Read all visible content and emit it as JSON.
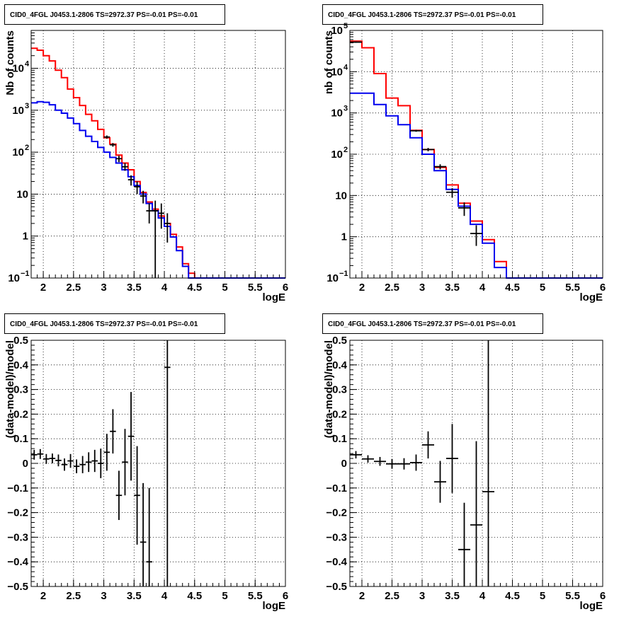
{
  "chart_data": [
    {
      "type": "line",
      "title": "CID0_4FGL J0453.1-2806 TS=2972.37 PS=-0.01 PS=-0.01",
      "xlabel": "logE",
      "ylabel": "Nb of counts",
      "xlim": [
        1.8,
        6
      ],
      "ylim": [
        0.1,
        80000
      ],
      "yscale": "log",
      "grid": true,
      "xticks": [
        "2",
        "2.5",
        "3",
        "3.5",
        "4",
        "4.5",
        "5",
        "5.5",
        "6"
      ],
      "yticks": [
        {
          "v": 0.1,
          "m": "10",
          "e": "−1"
        },
        {
          "v": 1,
          "m": "1"
        },
        {
          "v": 10,
          "m": "10"
        },
        {
          "v": 100,
          "m": "10",
          "e": "2"
        },
        {
          "v": 1000,
          "m": "10",
          "e": "3"
        },
        {
          "v": 10000,
          "m": "10",
          "e": "4"
        }
      ],
      "series": [
        {
          "color": "#ff0000",
          "kind": "step",
          "edges": [
            1.8,
            1.9,
            2.0,
            2.1,
            2.2,
            2.3,
            2.4,
            2.5,
            2.6,
            2.7,
            2.8,
            2.9,
            3.0,
            3.1,
            3.2,
            3.3,
            3.4,
            3.5,
            3.6,
            3.7,
            3.8,
            3.9,
            4.0,
            4.1,
            4.2,
            4.3,
            4.4,
            4.5,
            4.6,
            4.7,
            4.8,
            4.9,
            5.0,
            5.1,
            5.2,
            5.3,
            5.4,
            5.5,
            5.6,
            5.7,
            5.8,
            5.9,
            6.0
          ],
          "values": [
            30000,
            27000,
            20000,
            15000,
            9000,
            6000,
            3200,
            2000,
            1300,
            800,
            560,
            350,
            220,
            155,
            85,
            55,
            38,
            20,
            11,
            6.5,
            4.4,
            3.0,
            2.0,
            1.1,
            0.55,
            0.22,
            0.13,
            0.1,
            0.1,
            0.1,
            0.1,
            0.1,
            0.1,
            0.1,
            0.1,
            0.1,
            0.1,
            0.1,
            0.1,
            0.1,
            0.1,
            0.1
          ]
        },
        {
          "color": "#0000ee",
          "kind": "step",
          "edges": [
            1.8,
            1.9,
            2.0,
            2.1,
            2.2,
            2.3,
            2.4,
            2.5,
            2.6,
            2.7,
            2.8,
            2.9,
            3.0,
            3.1,
            3.2,
            3.3,
            3.4,
            3.5,
            3.6,
            3.7,
            3.8,
            3.9,
            4.0,
            4.1,
            4.2,
            4.3,
            4.4,
            4.5,
            4.6,
            4.7,
            4.8,
            4.9,
            5.0,
            5.1,
            5.2,
            5.3,
            5.4,
            5.5,
            5.6,
            5.7,
            5.8,
            5.9,
            6.0
          ],
          "values": [
            1500,
            1600,
            1550,
            1350,
            1000,
            850,
            650,
            480,
            330,
            240,
            180,
            130,
            100,
            75,
            55,
            38,
            26,
            16,
            10,
            6.0,
            4.0,
            2.7,
            1.7,
            0.95,
            0.45,
            0.19,
            0.1,
            0.1,
            0.1,
            0.1,
            0.1,
            0.1,
            0.1,
            0.1,
            0.1,
            0.1,
            0.1,
            0.1,
            0.1,
            0.1,
            0.1,
            0.1
          ]
        },
        {
          "color": "#000000",
          "kind": "errors",
          "points": [
            {
              "x": 3.05,
              "xerr": 0.05,
              "y": 230,
              "ylo": 210,
              "yhi": 250
            },
            {
              "x": 3.15,
              "xerr": 0.05,
              "y": 150,
              "ylo": 135,
              "yhi": 165
            },
            {
              "x": 3.25,
              "xerr": 0.05,
              "y": 70,
              "ylo": 58,
              "yhi": 82
            },
            {
              "x": 3.35,
              "xerr": 0.05,
              "y": 45,
              "ylo": 36,
              "yhi": 55
            },
            {
              "x": 3.45,
              "xerr": 0.05,
              "y": 22,
              "ylo": 16,
              "yhi": 28
            },
            {
              "x": 3.55,
              "xerr": 0.05,
              "y": 15,
              "ylo": 10,
              "yhi": 20
            },
            {
              "x": 3.65,
              "xerr": 0.05,
              "y": 9,
              "ylo": 6,
              "yhi": 12
            },
            {
              "x": 3.75,
              "xerr": 0.05,
              "y": 4,
              "ylo": 2,
              "yhi": 6
            },
            {
              "x": 3.85,
              "xerr": 0.05,
              "y": 4,
              "ylo": 0.1,
              "yhi": 7
            },
            {
              "x": 3.95,
              "xerr": 0.05,
              "y": 3.5,
              "ylo": 1.5,
              "yhi": 6
            },
            {
              "x": 4.05,
              "xerr": 0.05,
              "y": 2,
              "ylo": 0.7,
              "yhi": 3.5
            }
          ]
        }
      ]
    },
    {
      "type": "line",
      "title": "CID0_4FGL J0453.1-2806 TS=2972.37 PS=-0.01 PS=-0.01",
      "xlabel": "logE",
      "ylabel": "nb of counts",
      "xlim": [
        1.8,
        6
      ],
      "ylim": [
        0.1,
        100000
      ],
      "yscale": "log",
      "grid": true,
      "xticks": [
        "2",
        "2.5",
        "3",
        "3.5",
        "4",
        "4.5",
        "5",
        "5.5",
        "6"
      ],
      "yticks": [
        {
          "v": 0.1,
          "m": "10",
          "e": "−1"
        },
        {
          "v": 1,
          "m": "1"
        },
        {
          "v": 10,
          "m": "10"
        },
        {
          "v": 100,
          "m": "10",
          "e": "2"
        },
        {
          "v": 1000,
          "m": "10",
          "e": "3"
        },
        {
          "v": 10000,
          "m": "10",
          "e": "4"
        },
        {
          "v": 100000,
          "m": "10",
          "e": "5"
        }
      ],
      "series": [
        {
          "color": "#ff0000",
          "kind": "step",
          "edges": [
            1.8,
            2.0,
            2.2,
            2.4,
            2.6,
            2.8,
            3.0,
            3.2,
            3.4,
            3.6,
            3.8,
            4.0,
            4.2,
            4.4,
            4.6,
            4.8,
            5.0,
            5.2,
            5.4,
            5.6,
            5.8,
            6.0
          ],
          "values": [
            55000,
            38000,
            9000,
            2300,
            1500,
            380,
            130,
            48,
            18,
            6.5,
            2.4,
            0.85,
            0.25,
            0.1,
            0.1,
            0.1,
            0.1,
            0.1,
            0.1,
            0.1,
            0.1
          ]
        },
        {
          "color": "#0000ee",
          "kind": "step",
          "edges": [
            1.8,
            2.0,
            2.2,
            2.4,
            2.6,
            2.8,
            3.0,
            3.2,
            3.4,
            3.6,
            3.8,
            4.0,
            4.2,
            4.4,
            4.6,
            4.8,
            5.0,
            5.2,
            5.4,
            5.6,
            5.8,
            6.0
          ],
          "values": [
            3000,
            3000,
            1600,
            850,
            520,
            250,
            100,
            40,
            14,
            5.5,
            2.0,
            0.7,
            0.18,
            0.1,
            0.1,
            0.1,
            0.1,
            0.1,
            0.1,
            0.1,
            0.1
          ]
        },
        {
          "color": "#000000",
          "kind": "errors",
          "points": [
            {
              "x": 1.9,
              "xerr": 0.1,
              "y": 52000,
              "ylo": 50000,
              "yhi": 54000
            },
            {
              "x": 2.9,
              "xerr": 0.1,
              "y": 370,
              "ylo": 350,
              "yhi": 390
            },
            {
              "x": 3.1,
              "xerr": 0.1,
              "y": 130,
              "ylo": 118,
              "yhi": 142
            },
            {
              "x": 3.3,
              "xerr": 0.1,
              "y": 50,
              "ylo": 43,
              "yhi": 57
            },
            {
              "x": 3.5,
              "xerr": 0.1,
              "y": 12,
              "ylo": 9,
              "yhi": 15
            },
            {
              "x": 3.7,
              "xerr": 0.1,
              "y": 5,
              "ylo": 3.2,
              "yhi": 6.8
            },
            {
              "x": 3.9,
              "xerr": 0.1,
              "y": 1.2,
              "ylo": 0.6,
              "yhi": 1.9
            }
          ]
        }
      ]
    },
    {
      "type": "scatter",
      "title": "CID0_4FGL J0453.1-2806 TS=2972.37 PS=-0.01 PS=-0.01",
      "xlabel": "logE",
      "ylabel": "(data-model)/model",
      "xlim": [
        1.8,
        6
      ],
      "ylim": [
        -0.5,
        0.5
      ],
      "grid": true,
      "xticks": [
        "2",
        "2.5",
        "3",
        "3.5",
        "4",
        "4.5",
        "5",
        "5.5",
        "6"
      ],
      "yticks": [
        "−0.5",
        "−0.4",
        "−0.3",
        "−0.2",
        "−0.1",
        "0",
        "0.1",
        "0.2",
        "0.3",
        "0.4",
        "0.5"
      ],
      "series": [
        {
          "color": "#000000",
          "kind": "errors",
          "points": [
            {
              "x": 1.85,
              "xerr": 0.05,
              "y": 0.035,
              "ylo": 0.015,
              "yhi": 0.055
            },
            {
              "x": 1.95,
              "xerr": 0.05,
              "y": 0.038,
              "ylo": 0.018,
              "yhi": 0.058
            },
            {
              "x": 2.05,
              "xerr": 0.05,
              "y": 0.018,
              "ylo": -0.002,
              "yhi": 0.038
            },
            {
              "x": 2.15,
              "xerr": 0.05,
              "y": 0.02,
              "ylo": 0.0,
              "yhi": 0.04
            },
            {
              "x": 2.25,
              "xerr": 0.05,
              "y": 0.012,
              "ylo": -0.012,
              "yhi": 0.036
            },
            {
              "x": 2.35,
              "xerr": 0.05,
              "y": -0.005,
              "ylo": -0.03,
              "yhi": 0.02
            },
            {
              "x": 2.45,
              "xerr": 0.05,
              "y": 0.01,
              "ylo": -0.018,
              "yhi": 0.038
            },
            {
              "x": 2.55,
              "xerr": 0.05,
              "y": -0.012,
              "ylo": -0.04,
              "yhi": 0.016
            },
            {
              "x": 2.65,
              "xerr": 0.05,
              "y": -0.005,
              "ylo": -0.04,
              "yhi": 0.03
            },
            {
              "x": 2.75,
              "xerr": 0.05,
              "y": 0.005,
              "ylo": -0.035,
              "yhi": 0.045
            },
            {
              "x": 2.85,
              "xerr": 0.05,
              "y": 0.01,
              "ylo": -0.035,
              "yhi": 0.055
            },
            {
              "x": 2.95,
              "xerr": 0.05,
              "y": 0.0,
              "ylo": -0.06,
              "yhi": 0.06
            },
            {
              "x": 3.05,
              "xerr": 0.05,
              "y": 0.045,
              "ylo": -0.03,
              "yhi": 0.12
            },
            {
              "x": 3.15,
              "xerr": 0.05,
              "y": 0.13,
              "ylo": 0.04,
              "yhi": 0.22
            },
            {
              "x": 3.25,
              "xerr": 0.05,
              "y": -0.13,
              "ylo": -0.23,
              "yhi": -0.03
            },
            {
              "x": 3.35,
              "xerr": 0.05,
              "y": 0.005,
              "ylo": -0.13,
              "yhi": 0.14
            },
            {
              "x": 3.45,
              "xerr": 0.05,
              "y": 0.11,
              "ylo": -0.07,
              "yhi": 0.29
            },
            {
              "x": 3.55,
              "xerr": 0.05,
              "y": -0.13,
              "ylo": -0.33,
              "yhi": 0.07
            },
            {
              "x": 3.65,
              "xerr": 0.05,
              "y": -0.32,
              "ylo": -0.5,
              "yhi": -0.08
            },
            {
              "x": 3.75,
              "xerr": 0.05,
              "y": -0.4,
              "ylo": -0.5,
              "yhi": -0.1
            },
            {
              "x": 4.05,
              "xerr": 0.05,
              "y": 0.39,
              "ylo": -0.5,
              "yhi": 0.5
            }
          ]
        }
      ]
    },
    {
      "type": "scatter",
      "title": "CID0_4FGL J0453.1-2806 TS=2972.37 PS=-0.01 PS=-0.01",
      "xlabel": "logE",
      "ylabel": "(data-model)/model",
      "xlim": [
        1.8,
        6
      ],
      "ylim": [
        -0.5,
        0.5
      ],
      "grid": true,
      "xticks": [
        "2",
        "2.5",
        "3",
        "3.5",
        "4",
        "4.5",
        "5",
        "5.5",
        "6"
      ],
      "yticks": [
        "−0.5",
        "−0.4",
        "−0.3",
        "−0.2",
        "−0.1",
        "0",
        "0.1",
        "0.2",
        "0.3",
        "0.4",
        "0.5"
      ],
      "series": [
        {
          "color": "#000000",
          "kind": "errors",
          "points": [
            {
              "x": 1.9,
              "xerr": 0.1,
              "y": 0.035,
              "ylo": 0.02,
              "yhi": 0.05
            },
            {
              "x": 2.1,
              "xerr": 0.1,
              "y": 0.018,
              "ylo": 0.003,
              "yhi": 0.033
            },
            {
              "x": 2.3,
              "xerr": 0.1,
              "y": 0.008,
              "ylo": -0.01,
              "yhi": 0.026
            },
            {
              "x": 2.5,
              "xerr": 0.1,
              "y": -0.002,
              "ylo": -0.022,
              "yhi": 0.018
            },
            {
              "x": 2.7,
              "xerr": 0.1,
              "y": -0.002,
              "ylo": -0.025,
              "yhi": 0.021
            },
            {
              "x": 2.9,
              "xerr": 0.1,
              "y": 0.003,
              "ylo": -0.03,
              "yhi": 0.036
            },
            {
              "x": 3.1,
              "xerr": 0.1,
              "y": 0.075,
              "ylo": 0.02,
              "yhi": 0.13
            },
            {
              "x": 3.3,
              "xerr": 0.1,
              "y": -0.075,
              "ylo": -0.16,
              "yhi": 0.01
            },
            {
              "x": 3.5,
              "xerr": 0.1,
              "y": 0.02,
              "ylo": -0.12,
              "yhi": 0.16
            },
            {
              "x": 3.7,
              "xerr": 0.1,
              "y": -0.35,
              "ylo": -0.5,
              "yhi": -0.16
            },
            {
              "x": 3.9,
              "xerr": 0.1,
              "y": -0.25,
              "ylo": -0.5,
              "yhi": 0.09
            },
            {
              "x": 4.1,
              "xerr": 0.1,
              "y": -0.115,
              "ylo": -0.5,
              "yhi": 0.5
            }
          ]
        }
      ]
    }
  ]
}
